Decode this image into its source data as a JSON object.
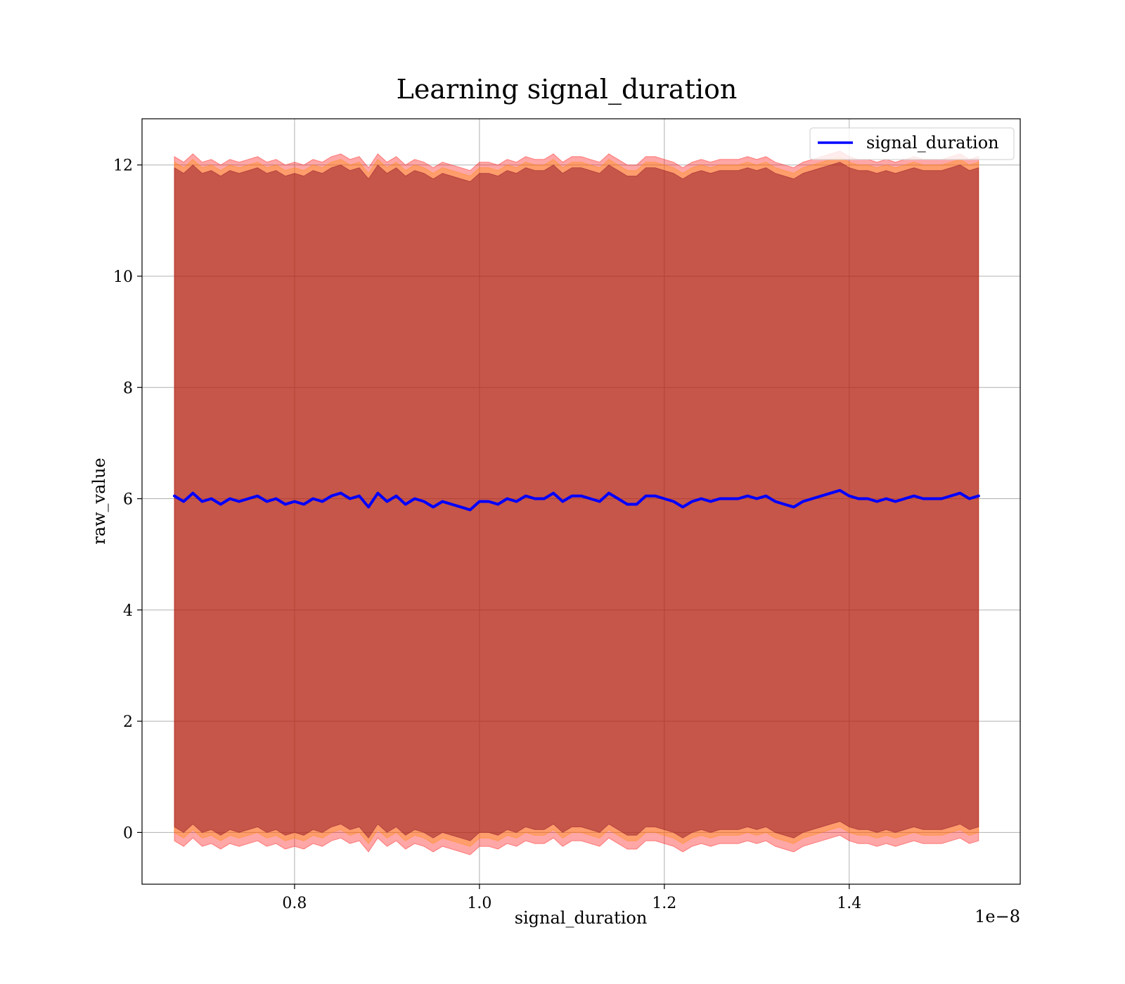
{
  "chart_data": {
    "type": "line",
    "title": "Learning signal_duration",
    "xlabel": "signal_duration",
    "ylabel": "raw_value",
    "x_offset_text": "1e−8",
    "xlim": [
      6.35e-09,
      1.585e-08
    ],
    "ylim": [
      -0.93,
      12.83
    ],
    "x_ticks": [
      8e-09,
      1e-08,
      1.2e-08,
      1.4e-08
    ],
    "x_tick_labels": [
      "0.8",
      "1.0",
      "1.2",
      "1.4"
    ],
    "y_ticks": [
      0,
      2,
      4,
      6,
      8,
      10,
      12
    ],
    "y_tick_labels": [
      "0",
      "2",
      "4",
      "6",
      "8",
      "10",
      "12"
    ],
    "grid": true,
    "legend": {
      "position": "top-right",
      "entries": [
        "signal_duration"
      ]
    },
    "series": [
      {
        "name": "signal_duration",
        "color": "#0000ff",
        "x": [
          6.7e-09,
          6.8e-09,
          6.9e-09,
          7e-09,
          7.1e-09,
          7.2e-09,
          7.3e-09,
          7.4e-09,
          7.5e-09,
          7.6e-09,
          7.7e-09,
          7.8e-09,
          7.9e-09,
          8e-09,
          8.1e-09,
          8.2e-09,
          8.3e-09,
          8.4e-09,
          8.5e-09,
          8.6e-09,
          8.7e-09,
          8.8e-09,
          8.9e-09,
          9e-09,
          9.1e-09,
          9.2e-09,
          9.3e-09,
          9.4e-09,
          9.5e-09,
          9.6e-09,
          9.7e-09,
          9.8e-09,
          9.9e-09,
          1e-08,
          1.01e-08,
          1.02e-08,
          1.03e-08,
          1.04e-08,
          1.05e-08,
          1.06e-08,
          1.07e-08,
          1.08e-08,
          1.09e-08,
          1.1e-08,
          1.11e-08,
          1.12e-08,
          1.13e-08,
          1.14e-08,
          1.15e-08,
          1.16e-08,
          1.17e-08,
          1.18e-08,
          1.19e-08,
          1.2e-08,
          1.21e-08,
          1.22e-08,
          1.23e-08,
          1.24e-08,
          1.25e-08,
          1.26e-08,
          1.27e-08,
          1.28e-08,
          1.29e-08,
          1.3e-08,
          1.31e-08,
          1.32e-08,
          1.33e-08,
          1.34e-08,
          1.35e-08,
          1.36e-08,
          1.37e-08,
          1.38e-08,
          1.39e-08,
          1.4e-08,
          1.41e-08,
          1.42e-08,
          1.43e-08,
          1.44e-08,
          1.45e-08,
          1.46e-08,
          1.47e-08,
          1.48e-08,
          1.49e-08,
          1.5e-08,
          1.51e-08,
          1.52e-08,
          1.53e-08,
          1.54e-08
        ],
        "y": [
          6.05,
          5.95,
          6.1,
          5.95,
          6.0,
          5.9,
          6.0,
          5.95,
          6.0,
          6.05,
          5.95,
          6.0,
          5.9,
          5.95,
          5.9,
          6.0,
          5.95,
          6.05,
          6.1,
          6.0,
          6.05,
          5.85,
          6.1,
          5.95,
          6.05,
          5.9,
          6.0,
          5.95,
          5.85,
          5.95,
          5.9,
          5.85,
          5.8,
          5.95,
          5.95,
          5.9,
          6.0,
          5.95,
          6.05,
          6.0,
          6.0,
          6.1,
          5.95,
          6.05,
          6.05,
          6.0,
          5.95,
          6.1,
          6.0,
          5.9,
          5.9,
          6.05,
          6.05,
          6.0,
          5.95,
          5.85,
          5.95,
          6.0,
          5.95,
          6.0,
          6.0,
          6.0,
          6.05,
          6.0,
          6.05,
          5.95,
          5.9,
          5.85,
          5.95,
          6.0,
          6.05,
          6.1,
          6.15,
          6.05,
          6.0,
          6.0,
          5.95,
          6.0,
          5.95,
          6.0,
          6.05,
          6.0,
          6.0,
          6.0,
          6.05,
          6.1,
          6.0,
          6.05
        ]
      }
    ],
    "bands": [
      {
        "color": "#ff0000",
        "upper_offset": 6.1,
        "lower_offset": 6.2
      },
      {
        "color": "#ff8c00",
        "upper_offset": 6.0,
        "lower_offset": 6.05
      },
      {
        "color": "#800020",
        "upper_offset": 5.9,
        "lower_offset": 5.95
      }
    ]
  }
}
